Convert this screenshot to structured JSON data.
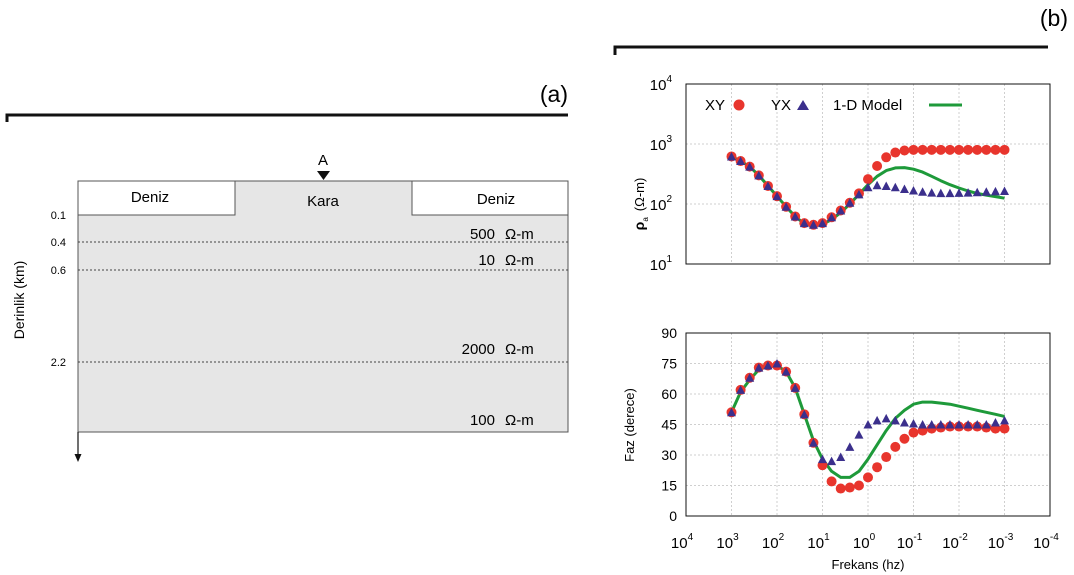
{
  "panel_a": {
    "label": "(a)",
    "station_label": "A",
    "depth_axis_label": "Derinlik (km)",
    "surface": [
      {
        "label": "Deniz"
      },
      {
        "label": "Kara"
      },
      {
        "label": "Deniz"
      }
    ],
    "depth_ticks": [
      "0.1",
      "0.4",
      "0.6",
      "2.2"
    ],
    "layers": [
      {
        "value": "500",
        "unit": "Ω-m"
      },
      {
        "value": "10",
        "unit": "Ω-m"
      },
      {
        "value": "2000",
        "unit": "Ω-m"
      },
      {
        "value": "100",
        "unit": "Ω-m"
      }
    ],
    "colors": {
      "sea": "#ffffff",
      "land": "#e6e6e6",
      "outline": "#555555"
    }
  },
  "panel_b": {
    "label": "(b)"
  },
  "chart_data": [
    {
      "type": "scatter",
      "panel": "(b) top",
      "title": "",
      "xlabel": "",
      "ylabel_main": "ρ",
      "ylabel_sub": "a",
      "ylabel_unit": "(Ω-m)",
      "xscale": "log",
      "x_reversed": true,
      "xlim": [
        10000,
        0.0001
      ],
      "yscale": "log",
      "ylim": [
        10,
        10000
      ],
      "grid": true,
      "legend_placement": "top",
      "y_ticks": [
        {
          "base": "10",
          "exp": "1"
        },
        {
          "base": "10",
          "exp": "2"
        },
        {
          "base": "10",
          "exp": "3"
        },
        {
          "base": "10",
          "exp": "4"
        }
      ],
      "series": [
        {
          "name": "XY",
          "marker": "circle",
          "color": "#e8352d",
          "x": [
            1000,
            631,
            398,
            251,
            158,
            100,
            63.1,
            39.8,
            25.1,
            15.8,
            10,
            6.31,
            3.98,
            2.51,
            1.58,
            1,
            0.631,
            0.398,
            0.251,
            0.158,
            0.1,
            0.0631,
            0.0398,
            0.0251,
            0.0158,
            0.01,
            0.00631,
            0.00398,
            0.00251,
            0.00158,
            0.001
          ],
          "y": [
            620,
            520,
            420,
            300,
            200,
            135,
            90,
            62,
            48,
            45,
            48,
            60,
            78,
            105,
            150,
            260,
            430,
            600,
            720,
            780,
            800,
            800,
            800,
            800,
            800,
            800,
            800,
            800,
            800,
            800,
            800
          ]
        },
        {
          "name": "YX",
          "marker": "triangle",
          "color": "#3b2f8c",
          "x": [
            1000,
            631,
            398,
            251,
            158,
            100,
            63.1,
            39.8,
            25.1,
            15.8,
            10,
            6.31,
            3.98,
            2.51,
            1.58,
            1,
            0.631,
            0.398,
            0.251,
            0.158,
            0.1,
            0.0631,
            0.0398,
            0.0251,
            0.0158,
            0.01,
            0.00631,
            0.00398,
            0.00251,
            0.00158,
            0.001
          ],
          "y": [
            620,
            520,
            420,
            300,
            200,
            135,
            90,
            62,
            48,
            45,
            48,
            60,
            78,
            105,
            145,
            190,
            205,
            200,
            190,
            178,
            168,
            160,
            155,
            152,
            152,
            153,
            155,
            157,
            160,
            162,
            165
          ]
        },
        {
          "name": "1-D Model",
          "marker": "line",
          "color": "#1e9a3a",
          "x": [
            1000,
            631,
            398,
            251,
            158,
            100,
            63.1,
            39.8,
            25.1,
            15.8,
            10,
            6.31,
            3.98,
            2.51,
            1.58,
            1,
            0.631,
            0.398,
            0.251,
            0.158,
            0.1,
            0.0631,
            0.0398,
            0.0251,
            0.0158,
            0.01,
            0.00631,
            0.00398,
            0.00251,
            0.00158,
            0.001
          ],
          "y": [
            620,
            520,
            420,
            300,
            200,
            135,
            90,
            62,
            47,
            44,
            46,
            55,
            72,
            100,
            145,
            210,
            290,
            360,
            400,
            405,
            380,
            340,
            290,
            245,
            210,
            185,
            165,
            150,
            140,
            133,
            125
          ]
        }
      ]
    },
    {
      "type": "scatter",
      "panel": "(b) bottom",
      "title": "",
      "xlabel": "Frekans (hz)",
      "ylabel": "Faz (derece)",
      "xscale": "log",
      "x_reversed": true,
      "xlim": [
        10000,
        0.0001
      ],
      "ylim": [
        0,
        90
      ],
      "grid": true,
      "y_ticks": [
        0,
        15,
        30,
        45,
        60,
        75,
        90
      ],
      "x_ticks": [
        {
          "base": "10",
          "exp": "4"
        },
        {
          "base": "10",
          "exp": "3"
        },
        {
          "base": "10",
          "exp": "2"
        },
        {
          "base": "10",
          "exp": "1"
        },
        {
          "base": "10",
          "exp": "0"
        },
        {
          "base": "10",
          "exp": "-1"
        },
        {
          "base": "10",
          "exp": "-2"
        },
        {
          "base": "10",
          "exp": "-3"
        },
        {
          "base": "10",
          "exp": "-4"
        }
      ],
      "series": [
        {
          "name": "XY",
          "marker": "circle",
          "color": "#e8352d",
          "x": [
            1000,
            631,
            398,
            251,
            158,
            100,
            63.1,
            39.8,
            25.1,
            15.8,
            10,
            6.31,
            3.98,
            2.51,
            1.58,
            1,
            0.631,
            0.398,
            0.251,
            0.158,
            0.1,
            0.0631,
            0.0398,
            0.0251,
            0.0158,
            0.01,
            0.00631,
            0.00398,
            0.00251,
            0.00158,
            0.001
          ],
          "y": [
            51,
            62,
            68,
            73,
            74,
            74,
            71,
            63,
            50,
            36,
            25,
            17,
            13.5,
            14,
            15,
            19,
            24,
            29,
            34,
            38,
            41,
            42,
            43,
            43.5,
            44,
            44,
            44,
            44,
            43.5,
            43,
            43
          ]
        },
        {
          "name": "YX",
          "marker": "triangle",
          "color": "#3b2f8c",
          "x": [
            1000,
            631,
            398,
            251,
            158,
            100,
            63.1,
            39.8,
            25.1,
            15.8,
            10,
            6.31,
            3.98,
            2.51,
            1.58,
            1,
            0.631,
            0.398,
            0.251,
            0.158,
            0.1,
            0.0631,
            0.0398,
            0.0251,
            0.0158,
            0.01,
            0.00631,
            0.00398,
            0.00251,
            0.00158,
            0.001
          ],
          "y": [
            51,
            62,
            68,
            73,
            74,
            75,
            71,
            63,
            50,
            36,
            28,
            27,
            29,
            34,
            40,
            45,
            47,
            48,
            47,
            46,
            45.5,
            45,
            45,
            45,
            45,
            45,
            45,
            45,
            45,
            46,
            47
          ]
        },
        {
          "name": "1-D Model",
          "marker": "line",
          "color": "#1e9a3a",
          "x": [
            1000,
            631,
            398,
            251,
            158,
            100,
            63.1,
            39.8,
            25.1,
            15.8,
            10,
            6.31,
            3.98,
            2.51,
            1.58,
            1,
            0.631,
            0.398,
            0.251,
            0.158,
            0.1,
            0.0631,
            0.0398,
            0.0251,
            0.0158,
            0.01,
            0.00631,
            0.00398,
            0.00251,
            0.00158,
            0.001
          ],
          "y": [
            51,
            61,
            67,
            72,
            74,
            74,
            71,
            63,
            50,
            37,
            28,
            22,
            19,
            19,
            22,
            28,
            35,
            42,
            48,
            52,
            55,
            56,
            56,
            55.5,
            55,
            54,
            53,
            52,
            51,
            50,
            49
          ]
        }
      ]
    }
  ]
}
